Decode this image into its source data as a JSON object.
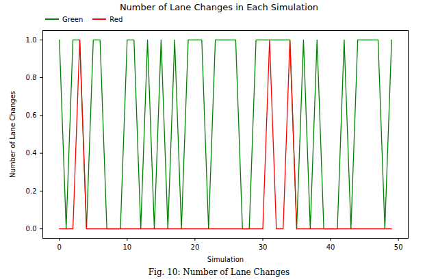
{
  "chart_data": {
    "type": "line",
    "title": "Number of Lane Changes in Each Simulation",
    "caption": "Fig. 10: Number of Lane Changes",
    "x_label": "Simulation",
    "y_label": "Number of Lane Changes",
    "x": [
      0,
      1,
      2,
      3,
      4,
      5,
      6,
      7,
      8,
      9,
      10,
      11,
      12,
      13,
      14,
      15,
      16,
      17,
      18,
      19,
      20,
      21,
      22,
      23,
      24,
      25,
      26,
      27,
      28,
      29,
      30,
      31,
      32,
      33,
      34,
      35,
      36,
      37,
      38,
      39,
      40,
      41,
      42,
      43,
      44,
      45,
      46,
      47,
      48,
      49
    ],
    "series": [
      {
        "name": "Green",
        "color": "green",
        "values": [
          1,
          0,
          1,
          1,
          0,
          1,
          1,
          0,
          0,
          0,
          1,
          1,
          0,
          1,
          0,
          1,
          0,
          1,
          0,
          1,
          1,
          1,
          0,
          1,
          1,
          1,
          1,
          0,
          0,
          1,
          1,
          1,
          1,
          1,
          1,
          0,
          1,
          0,
          1,
          0,
          0,
          0,
          1,
          0,
          1,
          1,
          1,
          1,
          0,
          1
        ]
      },
      {
        "name": "Red",
        "color": "red",
        "values": [
          0,
          0,
          0,
          1,
          0,
          0,
          0,
          0,
          0,
          0,
          0,
          0,
          0,
          0,
          0,
          0,
          0,
          0,
          0,
          0,
          0,
          0,
          0,
          0,
          0,
          0,
          0,
          0,
          0,
          0,
          0,
          1,
          0,
          0,
          1,
          0,
          0,
          0,
          0,
          0,
          0,
          0,
          0,
          0,
          0,
          0,
          0,
          0,
          0,
          0
        ]
      }
    ],
    "xlim": [
      -2.45,
      51.45
    ],
    "xticks": [
      0,
      10,
      20,
      30,
      40,
      50
    ],
    "ylim": [
      -0.05,
      1.05
    ],
    "yticks": [
      {
        "value": 0,
        "label": "0.0"
      },
      {
        "value": 0.2,
        "label": "0.2"
      },
      {
        "value": 0.4,
        "label": "0.4"
      },
      {
        "value": 0.6,
        "label": "0.6"
      },
      {
        "value": 0.8,
        "label": "0.8"
      },
      {
        "value": 1,
        "label": "1.0"
      }
    ],
    "grid": false,
    "legend": "upper left"
  }
}
